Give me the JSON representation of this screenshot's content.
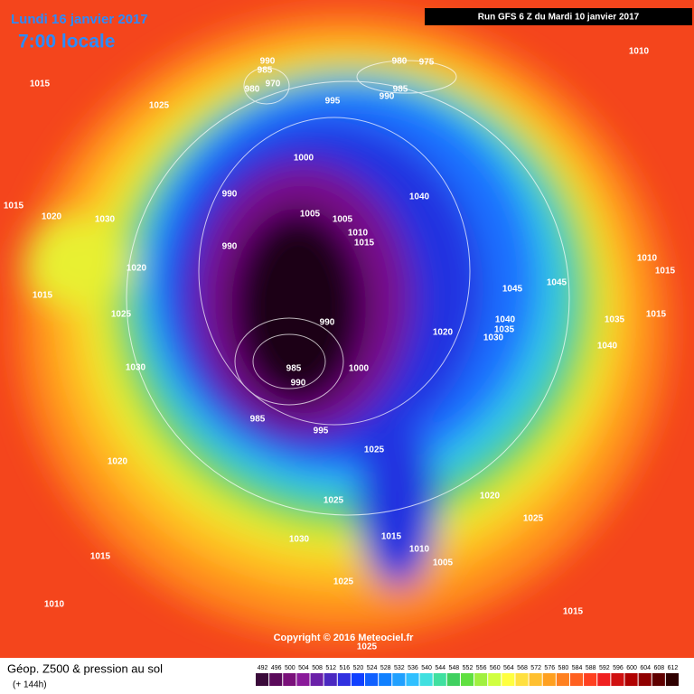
{
  "header": {
    "date": "Lundi 16 janvier 2017",
    "time": "7:00 locale"
  },
  "run_info": "Run GFS 6 Z du Mardi 10 janvier 2017",
  "isobar_labels": [
    "990",
    "985",
    "970",
    "980",
    "980",
    "975",
    "985",
    "990",
    "995",
    "1015",
    "1025",
    "1010",
    "1000",
    "990",
    "1005",
    "1005",
    "1040",
    "1015",
    "1020",
    "1030",
    "990",
    "1010",
    "1015",
    "1010",
    "1020",
    "1015",
    "1045",
    "1045",
    "1015",
    "1025",
    "1040",
    "1035",
    "1030",
    "1020",
    "990",
    "1035",
    "1015",
    "1040",
    "1030",
    "985",
    "990",
    "1000",
    "985",
    "995",
    "1025",
    "1020",
    "1020",
    "1025",
    "1025",
    "1030",
    "1015",
    "1010",
    "1005",
    "1015",
    "1025",
    "1010",
    "1015",
    "1025"
  ],
  "copyright": "Copyright © 2016 Meteociel.fr",
  "footer": {
    "title": "Géop. Z500 & pression au sol",
    "lead": "(+ 144h)"
  },
  "color_scale": {
    "values": [
      492,
      496,
      500,
      504,
      508,
      512,
      516,
      520,
      524,
      528,
      532,
      536,
      540,
      544,
      548,
      552,
      556,
      560,
      564,
      568,
      572,
      576,
      580,
      584,
      588,
      592,
      596,
      600,
      604,
      608,
      612
    ],
    "colors": [
      "#3a0a3a",
      "#5a0a5a",
      "#7a107a",
      "#8a1a9a",
      "#6a20a8",
      "#4a28c0",
      "#3030e0",
      "#1040ff",
      "#1060ff",
      "#1080ff",
      "#20a0ff",
      "#30c0ff",
      "#40e0e0",
      "#40e0a0",
      "#40d060",
      "#60e040",
      "#a0f040",
      "#d0ff40",
      "#ffff40",
      "#ffe040",
      "#ffc030",
      "#ffa020",
      "#ff8020",
      "#ff6020",
      "#ff4020",
      "#f02020",
      "#d01010",
      "#b00000",
      "#900000",
      "#600000",
      "#300000"
    ]
  }
}
